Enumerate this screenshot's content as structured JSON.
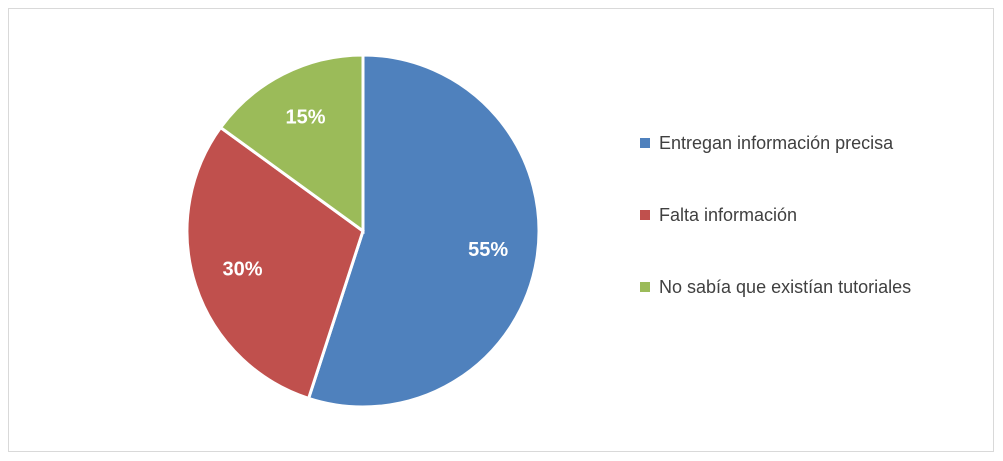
{
  "chart_data": {
    "type": "pie",
    "categories": [
      "Entregan información precisa",
      "Falta información",
      "No sabía que existían tutoriales"
    ],
    "values": [
      55,
      30,
      15
    ],
    "value_labels": [
      "55%",
      "30%",
      "15%"
    ],
    "colors": [
      "#4f81bd",
      "#c0504d",
      "#9bbb59"
    ],
    "legend": "right"
  }
}
